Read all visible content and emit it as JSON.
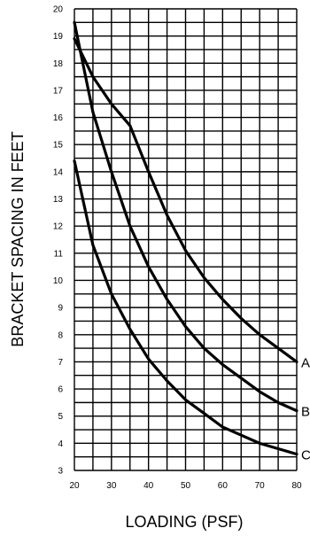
{
  "chart_data": {
    "type": "line",
    "title": "",
    "xlabel": "LOADING (PSF)",
    "ylabel": "BRACKET SPACING IN FEET",
    "xlim": [
      20,
      80
    ],
    "ylim": [
      3,
      20
    ],
    "x_ticks": [
      20,
      30,
      40,
      50,
      60,
      70,
      80
    ],
    "y_ticks": [
      3,
      4,
      5,
      6,
      7,
      8,
      9,
      10,
      11,
      12,
      13,
      14,
      15,
      16,
      17,
      18,
      19,
      20
    ],
    "grid": true,
    "legend": "labels at line ends (right)",
    "series": [
      {
        "name": "A",
        "x": [
          20,
          25,
          30,
          35,
          40,
          45,
          50,
          55,
          60,
          65,
          70,
          75,
          80
        ],
        "y": [
          18.9,
          17.5,
          16.5,
          15.7,
          14.0,
          12.4,
          11.1,
          10.1,
          9.3,
          8.6,
          8.0,
          7.5,
          7.0
        ]
      },
      {
        "name": "B",
        "x": [
          20,
          25,
          30,
          35,
          40,
          45,
          50,
          55,
          60,
          65,
          70,
          75,
          80
        ],
        "y": [
          19.5,
          16.2,
          14.0,
          12.0,
          10.5,
          9.3,
          8.3,
          7.5,
          6.9,
          6.4,
          5.9,
          5.5,
          5.2
        ]
      },
      {
        "name": "C",
        "x": [
          20,
          25,
          30,
          35,
          40,
          45,
          50,
          55,
          60,
          65,
          70,
          75,
          80
        ],
        "y": [
          14.4,
          11.3,
          9.5,
          8.2,
          7.1,
          6.3,
          5.6,
          5.1,
          4.6,
          4.3,
          4.0,
          3.8,
          3.6
        ]
      }
    ]
  }
}
